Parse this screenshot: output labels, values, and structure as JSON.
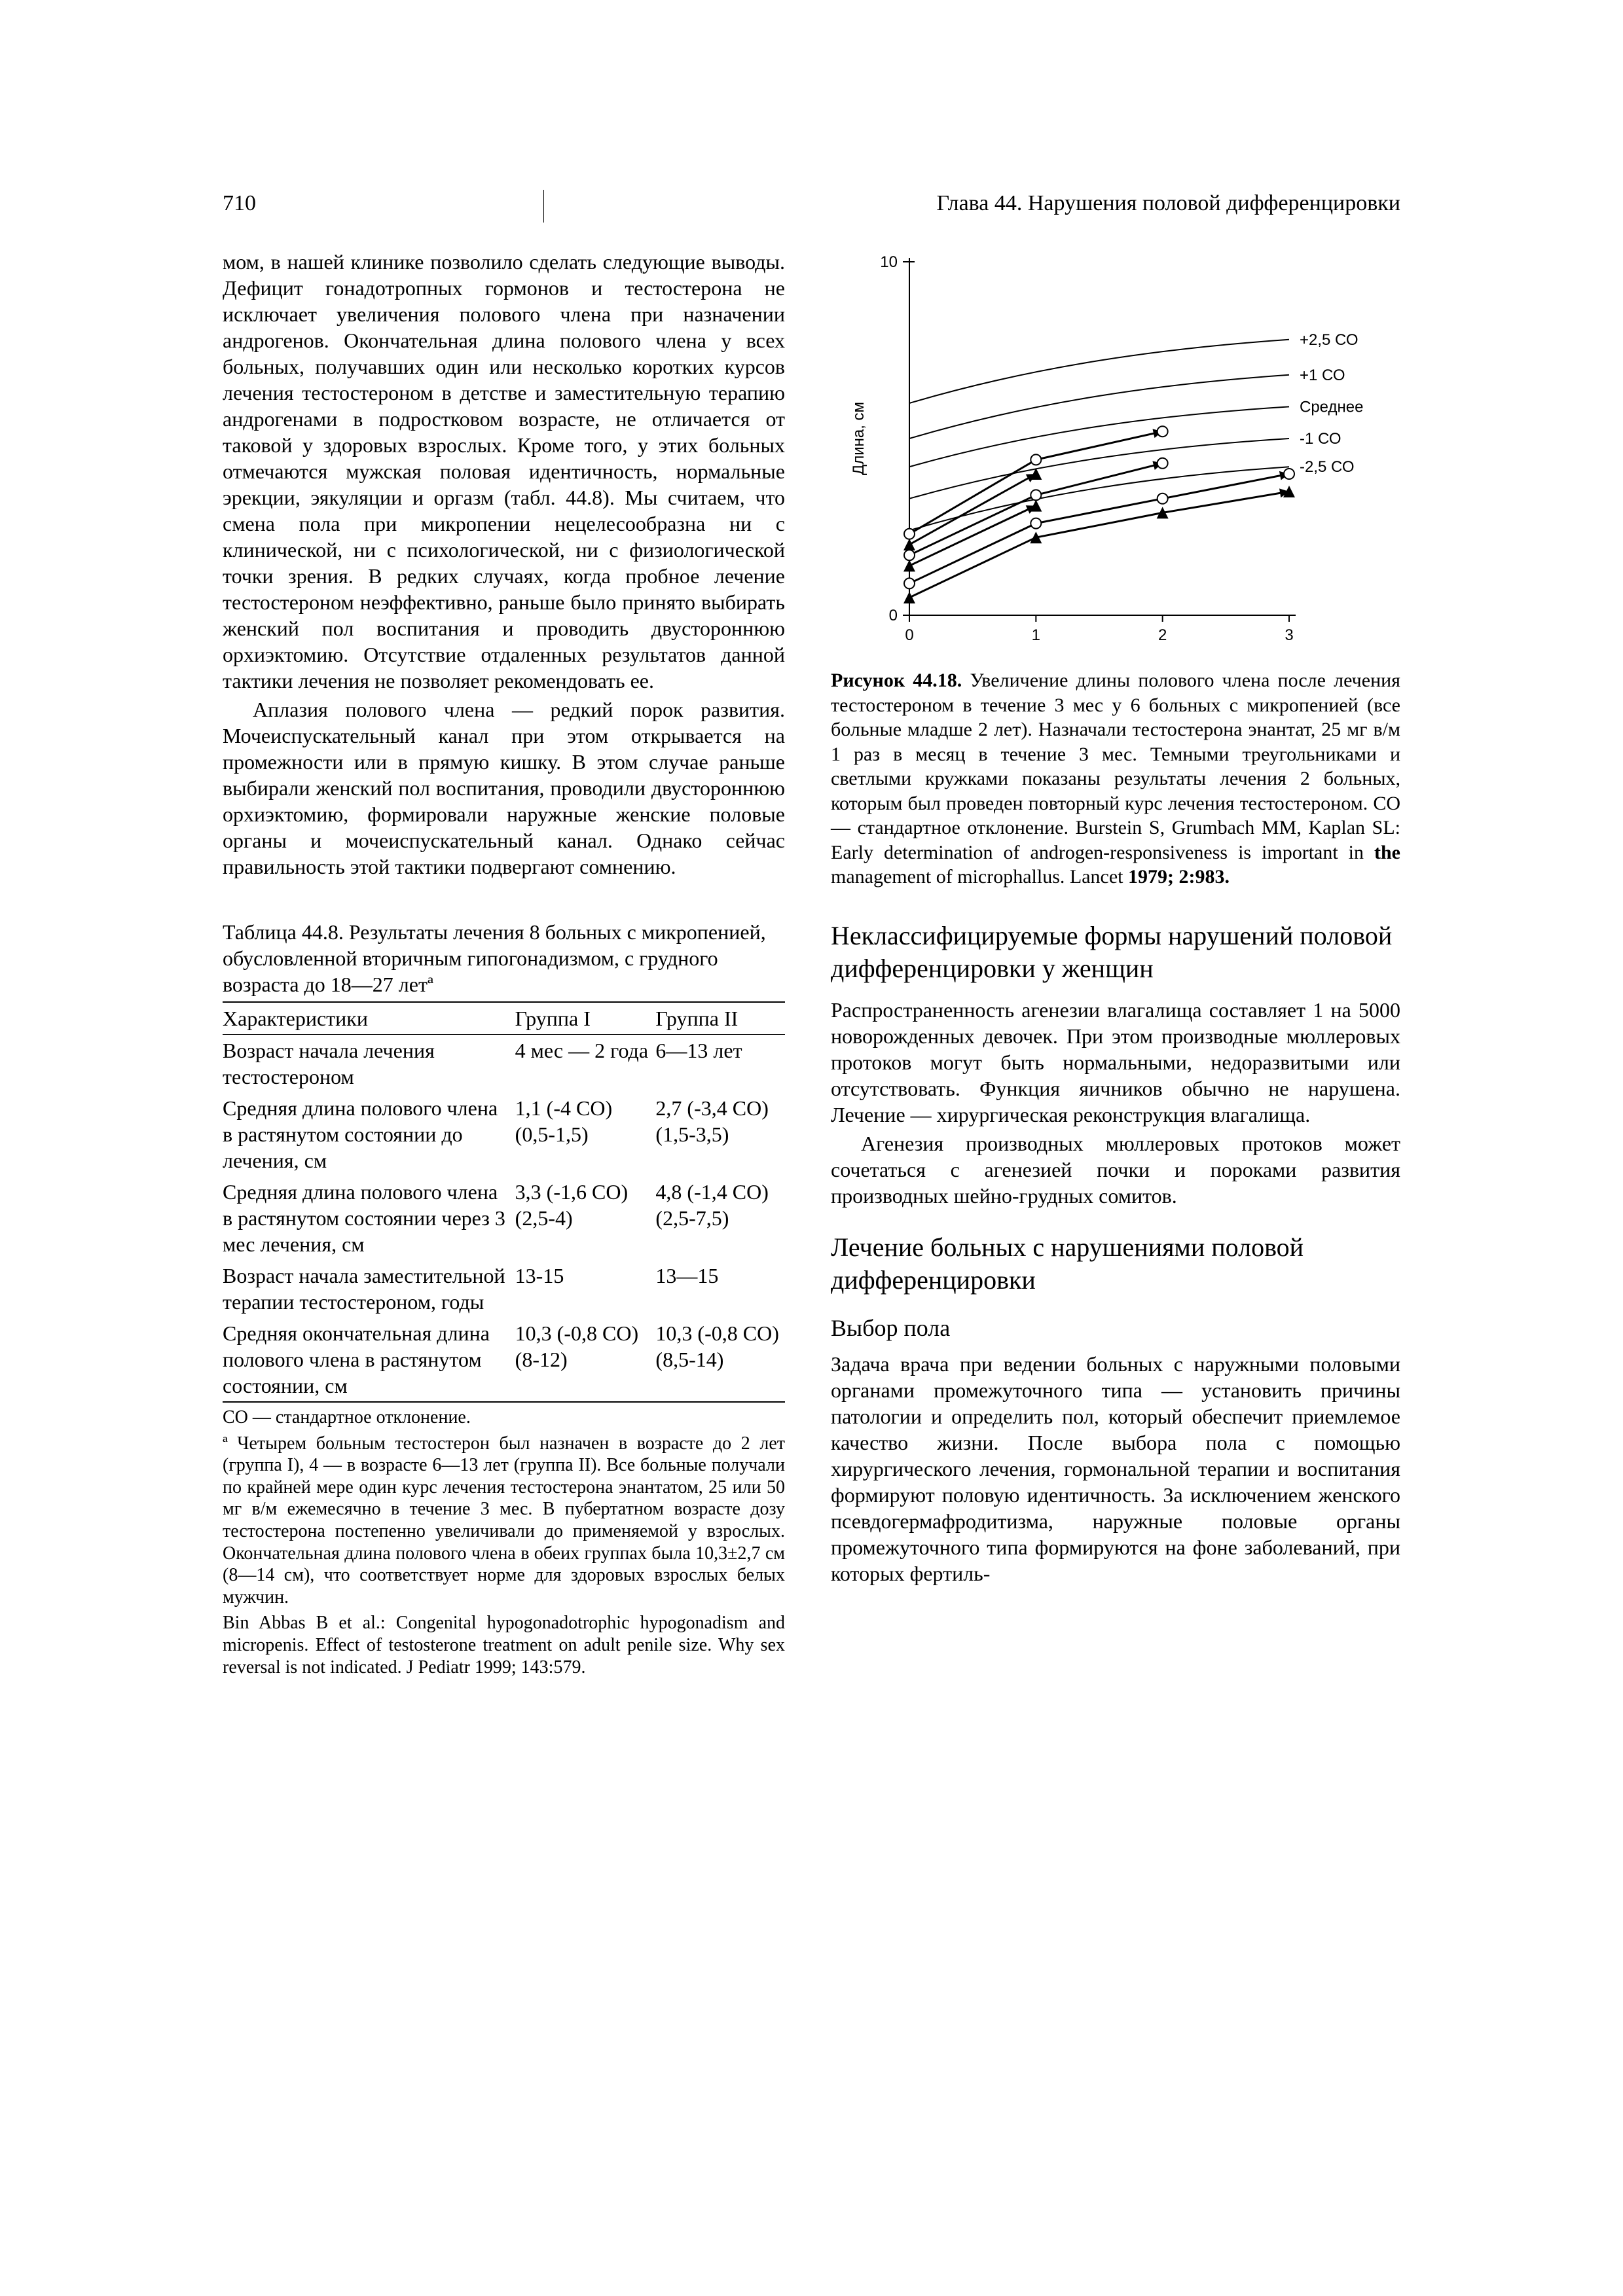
{
  "header": {
    "page_number": "710",
    "chapter": "Глава 44. Нарушения половой дифференцировки"
  },
  "left": {
    "p1": "мом, в нашей клинике позволило сделать следующие выводы. Дефицит гонадотропных гормонов и тестостерона не исключает увеличения полового члена при назначении андрогенов. Окончательная длина полового члена у всех больных, получавших один или несколько коротких курсов лечения тестостероном в детстве и заместительную терапию андрогенами в подростковом возрасте, не отличается от таковой у здоровых взрослых. Кроме того, у этих больных отмечаются мужская половая идентичность, нормальные эрекции, эякуляции и оргазм (табл. 44.8). Мы считаем, что смена пола при микропении нецелесообразна ни с клинической, ни с психологической, ни с физиологической точки зрения. В редких случаях, когда пробное лечение тестостероном неэффективно, раньше было принято выбирать женский пол воспитания и проводить двустороннюю орхиэктомию. Отсутствие отдаленных результатов данной тактики лечения не позволяет рекомендовать ее.",
    "p2": "Аплазия полового члена — редкий порок развития. Мочеиспускательный канал при этом открывается на промежности или в прямую кишку. В этом случае раньше выбирали женский пол воспитания, проводили двустороннюю орхиэктомию, формировали наружные женские половые органы и мочеиспускательный канал. Однако сейчас правильность этой тактики подвергают сомнению."
  },
  "table": {
    "title": "Таблица 44.8. Результаты лечения 8 больных с микропенией, обусловленной вторичным гипогонадизмом, с грудного возраста до 18—27 летª",
    "col_headers": [
      "Характеристики",
      "Группа I",
      "Группа II"
    ],
    "rows": [
      {
        "label": "Возраст начала лечения тестостероном",
        "g1": "4 мес — 2 года",
        "g2": "6—13 лет"
      },
      {
        "label": "Средняя длина полового члена в растянутом состоянии до лечения, см",
        "g1": "1,1 (-4 СО)\n(0,5-1,5)",
        "g2": "2,7 (-3,4 СО)\n(1,5-3,5)"
      },
      {
        "label": "Средняя длина полового члена в растянутом состоянии через 3 мес лечения, см",
        "g1": "3,3 (-1,6 СО)\n(2,5-4)",
        "g2": "4,8 (-1,4 СО)\n(2,5-7,5)"
      },
      {
        "label": "Возраст начала заместительной терапии тестостероном, годы",
        "g1": "13-15",
        "g2": "13—15"
      },
      {
        "label": "Средняя окончательная длина полового члена в растянутом состоянии, см",
        "g1": "10,3 (-0,8 СО)\n(8-12)",
        "g2": "10,3 (-0,8 СО)\n(8,5-14)"
      }
    ],
    "foot1": "СО — стандартное отклонение.",
    "foot2": "ª Четырем больным тестостерон был назначен в возрасте до 2 лет (группа I), 4 — в возрасте 6—13 лет (группа II). Все больные получали по крайней мере один курс лечения тестостерона энантатом, 25 или 50 мг в/м ежемесячно в течение 3 мес. В пубертатном возрасте дозу тестостерона постепенно увеличивали до применяемой у взрослых. Окончательная длина полового члена в обеих группах была 10,3±2,7 см (8—14 см), что соответствует норме для здоровых взрослых белых мужчин.",
    "foot3": "Bin Abbas B et al.: Congenital hypogonadotrophic hypogonadism and micropenis. Effect of testosterone treatment on adult penile size. Why sex reversal is not indicated. J Pediatr 1999; 143:579."
  },
  "figure": {
    "type": "line",
    "xlim": [
      0,
      3
    ],
    "ylim": [
      0,
      10
    ],
    "xticks": [
      0,
      1,
      2,
      3
    ],
    "yticks": [
      0,
      10
    ],
    "yaxis_label": "Длина, см",
    "ref_lines": [
      {
        "label": "+2,5 СО",
        "start": 6.0,
        "end": 7.8,
        "color": "#000000"
      },
      {
        "label": "+1 СО",
        "start": 5.0,
        "end": 6.8,
        "color": "#000000"
      },
      {
        "label": "Среднее",
        "start": 4.2,
        "end": 5.9,
        "color": "#000000"
      },
      {
        "label": "-1 СО",
        "start": 3.3,
        "end": 5.0,
        "color": "#000000"
      },
      {
        "label": "-2,5 СО",
        "start": 2.4,
        "end": 4.2,
        "color": "#000000"
      }
    ],
    "series": [
      {
        "marker": "triangle-filled",
        "color": "#000000",
        "pts": [
          [
            0,
            0.5
          ],
          [
            1,
            2.2
          ],
          [
            2,
            2.9
          ],
          [
            3,
            3.5
          ]
        ]
      },
      {
        "marker": "circle-open",
        "color": "#000000",
        "pts": [
          [
            0,
            0.9
          ],
          [
            1,
            2.6
          ],
          [
            2,
            3.3
          ],
          [
            3,
            4.0
          ]
        ]
      },
      {
        "marker": "triangle-filled",
        "color": "#000000",
        "pts": [
          [
            0,
            1.4
          ],
          [
            1,
            3.1
          ]
        ]
      },
      {
        "marker": "circle-open",
        "color": "#000000",
        "pts": [
          [
            0,
            1.7
          ],
          [
            1,
            3.4
          ],
          [
            2,
            4.3
          ]
        ]
      },
      {
        "marker": "triangle-filled",
        "color": "#000000",
        "pts": [
          [
            0,
            2.0
          ],
          [
            1,
            4.0
          ]
        ]
      },
      {
        "marker": "circle-open",
        "color": "#000000",
        "pts": [
          [
            0,
            2.3
          ],
          [
            1,
            4.4
          ],
          [
            2,
            5.2
          ]
        ]
      }
    ],
    "line_width": 3,
    "axis_color": "#000000",
    "tick_fontsize": 24,
    "label_fontsize": 24,
    "background": "#ffffff",
    "arrow_heads": true,
    "caption_bold": "Рисунок 44.18.",
    "caption": " Увеличение длины полового члена после лечения тестостероном в течение 3 мес у 6 больных с микропенией (все больные младше 2 лет). Назначали тестостерона энантат, 25 мг в/м 1 раз в месяц в течение 3 мес. Темными треугольниками и светлыми кружками показаны результаты лечения 2 больных, которым был проведен повторный курс лечения тестостероном. СО — стандартное отклонение. Burstein S, Grumbach MM, Kaplan SL: Early determination of androgen-responsiveness is important in ",
    "caption_bold2": "the",
    "caption_tail": " management of microphallus. Lancet ",
    "caption_ref": "1979; 2:983."
  },
  "right": {
    "h1": "Неклассифицируемые формы нарушений половой дифференцировки у женщин",
    "p1": "Распространенность агенезии влагалища составляет 1 на 5000 новорожденных девочек. При этом производные мюллеровых протоков могут быть нормальными, недоразвитыми или отсутствовать. Функция яичников обычно не нарушена. Лечение — хирургическая реконструкция влагалища.",
    "p2": "Агенезия производных мюллеровых протоков может сочетаться с агенезией почки и пороками развития производных шейно-грудных сомитов.",
    "h2": "Лечение больных с нарушениями половой дифференцировки",
    "h3": "Выбор пола",
    "p3": "Задача врача при ведении больных с наружными половыми органами промежуточного типа — установить причины патологии и определить пол, который обеспечит приемлемое качество жизни. После выбора пола с помощью хирургического лечения, гормональной терапии и воспитания формируют половую идентичность. За исключением женского псевдогермафродитизма, наружные половые органы промежуточного типа формируются на фоне заболеваний, при которых фертиль-"
  }
}
